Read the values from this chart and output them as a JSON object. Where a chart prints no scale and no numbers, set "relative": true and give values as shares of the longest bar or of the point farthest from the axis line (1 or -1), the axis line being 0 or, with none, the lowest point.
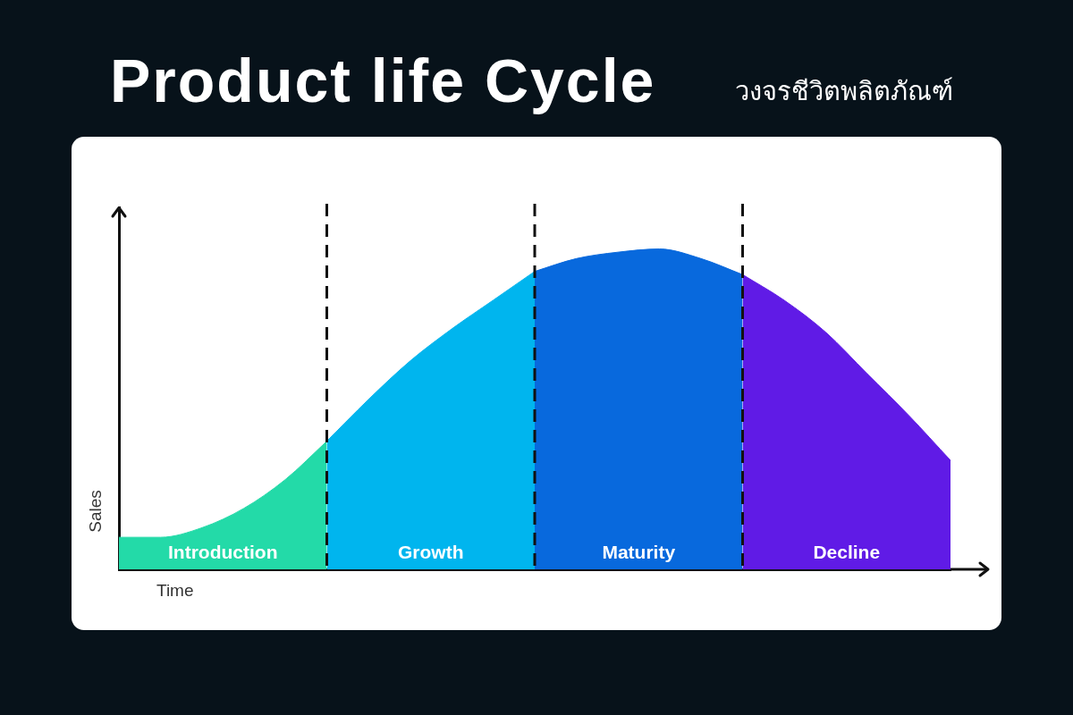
{
  "chart_data": {
    "type": "area",
    "title": "Product life Cycle",
    "subtitle": "วงจรชีวิตพลิตภัณฑ์",
    "xlabel": "Time",
    "ylabel": "Sales",
    "relative": true,
    "categories": [
      null,
      null,
      null,
      null,
      null,
      null,
      null,
      null,
      null,
      null,
      null,
      null,
      null,
      null,
      null,
      null,
      null,
      null,
      null,
      null,
      null
    ],
    "series": [
      {
        "name": "Introduction",
        "color": "#23daa8",
        "values": [
          0.1,
          0.1,
          0.13,
          0.19,
          0.28,
          0.4,
          null,
          null,
          null,
          null,
          null,
          null,
          null,
          null,
          null,
          null,
          null,
          null,
          null,
          null,
          null
        ]
      },
      {
        "name": "Growth",
        "color": "#00b5ee",
        "values": [
          null,
          null,
          null,
          null,
          null,
          0.4,
          0.53,
          0.65,
          0.75,
          0.84,
          0.93,
          null,
          null,
          null,
          null,
          null,
          null,
          null,
          null,
          null,
          null
        ]
      },
      {
        "name": "Maturity",
        "color": "#0869dd",
        "values": [
          null,
          null,
          null,
          null,
          null,
          null,
          null,
          null,
          null,
          null,
          0.93,
          0.97,
          0.99,
          1.0,
          0.97,
          0.92,
          null,
          null,
          null,
          null,
          null
        ]
      },
      {
        "name": "Decline",
        "color": "#601be6",
        "values": [
          null,
          null,
          null,
          null,
          null,
          null,
          null,
          null,
          null,
          null,
          null,
          null,
          null,
          null,
          null,
          0.92,
          0.84,
          0.74,
          0.61,
          0.48,
          0.34
        ]
      }
    ],
    "grid": "x",
    "line_style": "dashed",
    "legend": false,
    "marker": "none"
  }
}
